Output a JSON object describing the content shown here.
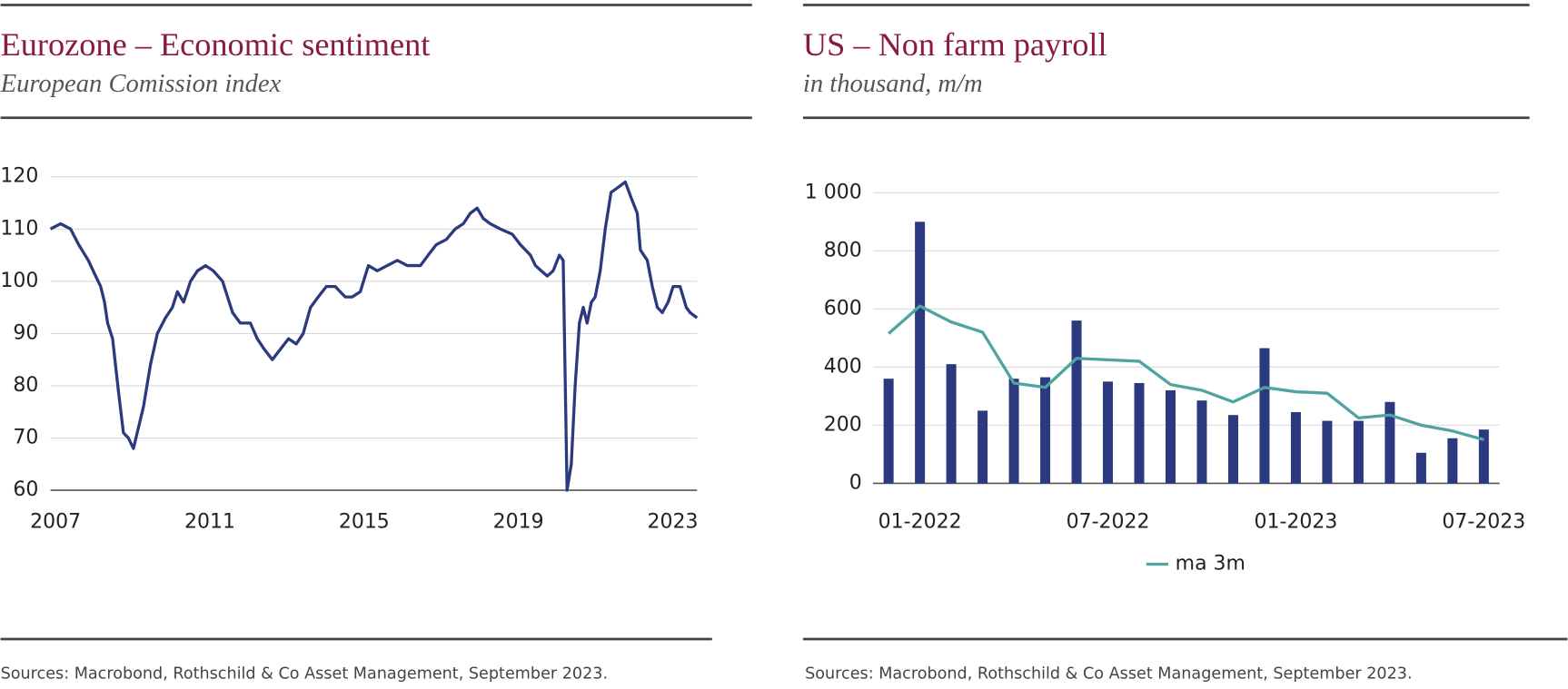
{
  "chart_data": [
    {
      "type": "line",
      "title": "Eurozone – Economic sentiment",
      "subtitle": "European Comission index",
      "source": "Sources: Macrobond, Rothschild & Co Asset Management, September 2023.",
      "x": [
        2006.87,
        2007.13,
        2007.39,
        2007.6,
        2007.85,
        2008.04,
        2008.17,
        2008.27,
        2008.35,
        2008.48,
        2008.63,
        2008.76,
        2008.89,
        2009.02,
        2009.15,
        2009.28,
        2009.46,
        2009.64,
        2009.85,
        2010.03,
        2010.16,
        2010.32,
        2010.5,
        2010.68,
        2010.89,
        2011.09,
        2011.33,
        2011.59,
        2011.79,
        2012.05,
        2012.23,
        2012.41,
        2012.62,
        2012.83,
        2013.04,
        2013.24,
        2013.42,
        2013.61,
        2013.81,
        2014.02,
        2014.25,
        2014.51,
        2014.69,
        2014.9,
        2015.11,
        2015.34,
        2015.6,
        2015.86,
        2016.12,
        2016.46,
        2016.66,
        2016.87,
        2017.13,
        2017.36,
        2017.57,
        2017.75,
        2017.93,
        2018.09,
        2018.27,
        2018.53,
        2018.84,
        2019.05,
        2019.31,
        2019.44,
        2019.59,
        2019.75,
        2019.9,
        2020.06,
        2020.16,
        2020.26,
        2020.37,
        2020.47,
        2020.58,
        2020.68,
        2020.78,
        2020.89,
        2020.99,
        2021.12,
        2021.25,
        2021.4,
        2021.59,
        2021.77,
        2021.92,
        2022.08,
        2022.16,
        2022.34,
        2022.47,
        2022.6,
        2022.73,
        2022.88,
        2023.01,
        2023.19,
        2023.35,
        2023.45,
        2023.63
      ],
      "series": [
        {
          "color": "#2b3a7e",
          "values": [
            110,
            111,
            110,
            107,
            104,
            101,
            99,
            96,
            92,
            89,
            79,
            71,
            70,
            68,
            72,
            76,
            84,
            90,
            93,
            95,
            98,
            96,
            100,
            102,
            103,
            102,
            100,
            94,
            92,
            92,
            89,
            87,
            85,
            87,
            89,
            88,
            90,
            95,
            97,
            99,
            99,
            97,
            97,
            98,
            103,
            102,
            103,
            104,
            103,
            103,
            105,
            107,
            108,
            110,
            111,
            113,
            114,
            112,
            111,
            110,
            109,
            107,
            105,
            103,
            102,
            101,
            102,
            105,
            104,
            60,
            65,
            80,
            92,
            95,
            92,
            96,
            97,
            102,
            110,
            117,
            118,
            119,
            116,
            113,
            106,
            104,
            99,
            95,
            94,
            96,
            99,
            99,
            95,
            94,
            93
          ]
        }
      ],
      "xlim": [
        2006.87,
        2023.63
      ],
      "xticks": [
        2007,
        2011,
        2015,
        2019,
        2023
      ],
      "ylim": [
        60,
        120
      ],
      "yticks": [
        60,
        70,
        80,
        90,
        100,
        110,
        120
      ],
      "grid": true
    },
    {
      "type": "bar",
      "title": "US – Non farm payroll",
      "subtitle": "in thousand, m/m",
      "source": "Sources: Macrobond, Rothschild & Co Asset Management, September 2023.",
      "categories": [
        null,
        "01-2022",
        null,
        null,
        null,
        null,
        null,
        "07-2022",
        null,
        null,
        null,
        null,
        null,
        "01-2023",
        null,
        null,
        null,
        null,
        null,
        "07-2023"
      ],
      "series": [
        {
          "type": "bar",
          "color": "#2b3a7e",
          "values": [
            360,
            900,
            410,
            250,
            360,
            365,
            560,
            350,
            345,
            320,
            285,
            235,
            465,
            245,
            215,
            215,
            280,
            105,
            155,
            185
          ]
        },
        {
          "type": "line",
          "name": "ma 3m",
          "color": "#4fa3a0",
          "values": [
            515,
            610,
            555,
            520,
            345,
            330,
            430,
            425,
            420,
            340,
            320,
            280,
            330,
            315,
            310,
            225,
            235,
            200,
            180,
            150
          ]
        }
      ],
      "ylim": [
        0,
        1000
      ],
      "yticks": [
        0,
        200,
        400,
        600,
        800,
        {
          "value": 1000,
          "label": "1 000"
        }
      ],
      "grid": true,
      "legend": "bottom"
    }
  ]
}
